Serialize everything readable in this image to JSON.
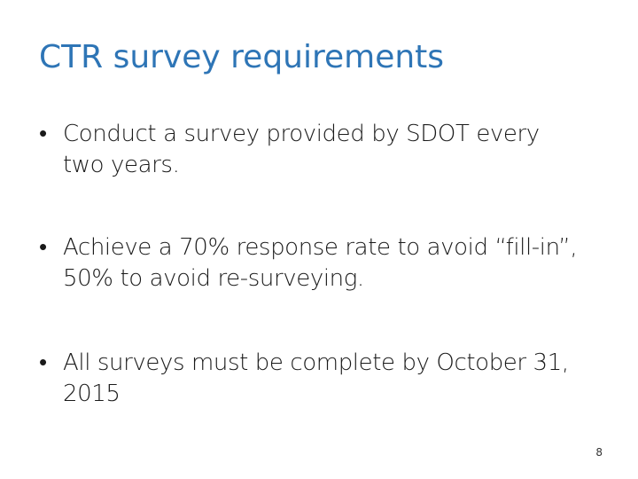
{
  "slide": {
    "title": "CTR survey requirements",
    "bullets": [
      {
        "line1": "Conduct a survey provided by SDOT every",
        "line2": "two years."
      },
      {
        "line1": "Achieve a 70% response rate to avoid “fill-in”,",
        "line2": "50% to avoid re-surveying."
      },
      {
        "line1": "All surveys must be complete by October 31,",
        "line2": "2015"
      }
    ],
    "bullet_glyph": "•",
    "page_number": "8"
  },
  "colors": {
    "title": "#2e75b6",
    "text": "#1a1a1a",
    "background": "#ffffff"
  }
}
